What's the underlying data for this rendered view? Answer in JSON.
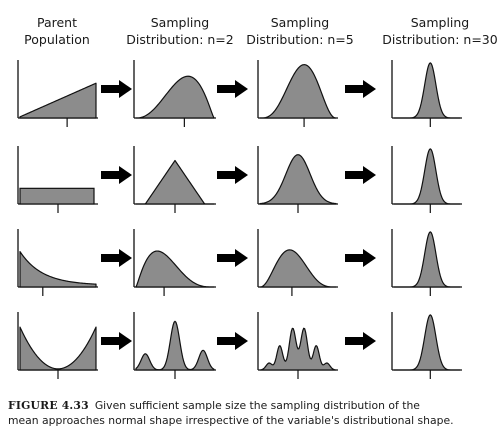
{
  "columns": [
    {
      "line1": "Parent",
      "line2": "Population"
    },
    {
      "line1": "Sampling",
      "line2": "Distribution: n=2"
    },
    {
      "line1": "Sampling",
      "line2": "Distribution: n=5"
    },
    {
      "line1": "Sampling",
      "line2": "Distribution: n=30"
    }
  ],
  "rows": [
    {
      "parent": "increasing-linear",
      "n2": "left-skewed",
      "n5": "slightly-left-skewed",
      "n30": "normal-narrow"
    },
    {
      "parent": "uniform",
      "n2": "triangular",
      "n5": "bell",
      "n30": "normal-narrow"
    },
    {
      "parent": "exponential-decay",
      "n2": "right-skewed",
      "n5": "slightly-right-skewed",
      "n30": "normal-narrow"
    },
    {
      "parent": "u-shaped",
      "n2": "trimodal",
      "n5": "multimodal",
      "n30": "normal-narrow"
    }
  ],
  "caption": {
    "label": "FIGURE 4.33",
    "line1": "Given sufficient sample size the sampling distribution of the",
    "line2": "mean approaches normal shape irrespective of the variable's distributional shape."
  },
  "colors": {
    "fill": "#8c8c8c",
    "stroke": "#111111",
    "arrow": "#000000"
  }
}
